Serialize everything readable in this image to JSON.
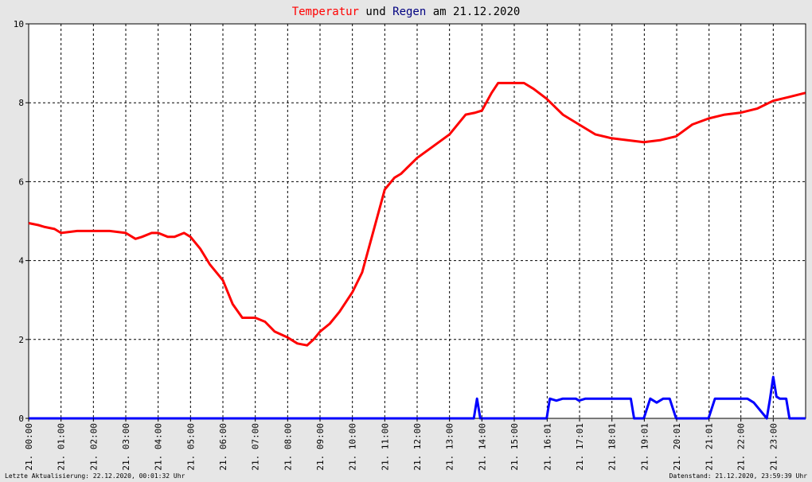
{
  "chart_data": {
    "type": "line",
    "title_parts": [
      {
        "text": "Temperatur",
        "color": "#ff0000"
      },
      {
        "text": " und ",
        "color": "#000000"
      },
      {
        "text": "Regen",
        "color": "#000080"
      },
      {
        "text": " am 21.12.2020",
        "color": "#000000"
      }
    ],
    "ylim": [
      0,
      10
    ],
    "yticks": [
      "0",
      "2",
      "4",
      "6",
      "8",
      "10"
    ],
    "xlim": [
      0,
      24
    ],
    "xticks": [
      {
        "h": 0.0,
        "label": "21. 00:00"
      },
      {
        "h": 1.0,
        "label": "21. 01:00"
      },
      {
        "h": 2.0,
        "label": "21. 02:00"
      },
      {
        "h": 3.0,
        "label": "21. 03:00"
      },
      {
        "h": 4.0,
        "label": "21. 04:00"
      },
      {
        "h": 5.0,
        "label": "21. 05:00"
      },
      {
        "h": 6.0,
        "label": "21. 06:00"
      },
      {
        "h": 7.0,
        "label": "21. 07:00"
      },
      {
        "h": 8.0,
        "label": "21. 08:00"
      },
      {
        "h": 9.0,
        "label": "21. 09:00"
      },
      {
        "h": 10.0,
        "label": "21. 10:00"
      },
      {
        "h": 11.0,
        "label": "21. 11:00"
      },
      {
        "h": 12.0,
        "label": "21. 12:00"
      },
      {
        "h": 13.0,
        "label": "21. 13:00"
      },
      {
        "h": 14.0,
        "label": "21. 14:00"
      },
      {
        "h": 15.0,
        "label": "21. 15:00"
      },
      {
        "h": 16.017,
        "label": "21. 16:01"
      },
      {
        "h": 17.017,
        "label": "21. 17:01"
      },
      {
        "h": 18.017,
        "label": "21. 18:01"
      },
      {
        "h": 19.017,
        "label": "21. 19:01"
      },
      {
        "h": 20.017,
        "label": "21. 20:01"
      },
      {
        "h": 21.017,
        "label": "21. 21:01"
      },
      {
        "h": 22.0,
        "label": "21. 22:00"
      },
      {
        "h": 23.0,
        "label": "21. 23:00"
      }
    ],
    "grid": true,
    "series": [
      {
        "name": "Temperatur",
        "color": "#ff0000",
        "x": [
          0,
          0.3,
          0.5,
          0.8,
          1.0,
          1.5,
          2.0,
          2.5,
          3.0,
          3.3,
          3.5,
          3.8,
          4.0,
          4.3,
          4.5,
          4.8,
          5.0,
          5.3,
          5.6,
          6.0,
          6.3,
          6.6,
          7.0,
          7.3,
          7.6,
          8.0,
          8.3,
          8.6,
          8.8,
          9.0,
          9.3,
          9.6,
          10.0,
          10.3,
          10.6,
          11.0,
          11.3,
          11.5,
          12.0,
          12.5,
          13.0,
          13.5,
          13.8,
          14.0,
          14.3,
          14.5,
          15.0,
          15.3,
          15.6,
          16.0,
          16.5,
          17.0,
          17.5,
          18.0,
          18.5,
          19.0,
          19.5,
          20.0,
          20.5,
          21.0,
          21.5,
          22.0,
          22.5,
          23.0,
          23.5,
          23.99
        ],
        "y": [
          4.95,
          4.9,
          4.85,
          4.8,
          4.7,
          4.75,
          4.75,
          4.75,
          4.7,
          4.55,
          4.6,
          4.7,
          4.7,
          4.6,
          4.6,
          4.7,
          4.6,
          4.3,
          3.9,
          3.5,
          2.9,
          2.55,
          2.55,
          2.45,
          2.2,
          2.05,
          1.9,
          1.85,
          2.0,
          2.2,
          2.4,
          2.7,
          3.2,
          3.7,
          4.6,
          5.8,
          6.1,
          6.2,
          6.6,
          6.9,
          7.2,
          7.7,
          7.75,
          7.8,
          8.25,
          8.5,
          8.5,
          8.5,
          8.35,
          8.1,
          7.7,
          7.45,
          7.2,
          7.1,
          7.05,
          7.0,
          7.05,
          7.15,
          7.45,
          7.6,
          7.7,
          7.75,
          7.85,
          8.05,
          8.15,
          8.25
        ]
      },
      {
        "name": "Regen",
        "color": "#0000ff",
        "x": [
          0,
          13.75,
          13.85,
          13.95,
          16.0,
          16.1,
          16.3,
          16.5,
          16.7,
          16.9,
          17.0,
          17.2,
          17.4,
          17.6,
          17.8,
          18.0,
          18.2,
          18.4,
          18.6,
          18.7,
          19.0,
          19.2,
          19.4,
          19.6,
          19.8,
          20.0,
          21.0,
          21.2,
          21.4,
          21.6,
          21.8,
          22.0,
          22.2,
          22.4,
          22.8,
          22.9,
          23.0,
          23.1,
          23.2,
          23.4,
          23.5,
          24.0
        ],
        "y": [
          0,
          0,
          0.5,
          0,
          0,
          0.5,
          0.45,
          0.5,
          0.5,
          0.5,
          0.45,
          0.5,
          0.5,
          0.5,
          0.5,
          0.5,
          0.5,
          0.5,
          0.5,
          0,
          0,
          0.5,
          0.4,
          0.5,
          0.5,
          0,
          0,
          0.5,
          0.5,
          0.5,
          0.5,
          0.5,
          0.5,
          0.4,
          0,
          0.5,
          1.05,
          0.55,
          0.5,
          0.5,
          0,
          0
        ]
      }
    ]
  },
  "footer": {
    "left": "Letzte Aktualisierung: 22.12.2020, 00:01:32 Uhr",
    "right": "Datenstand: 21.12.2020, 23:59:39 Uhr"
  }
}
